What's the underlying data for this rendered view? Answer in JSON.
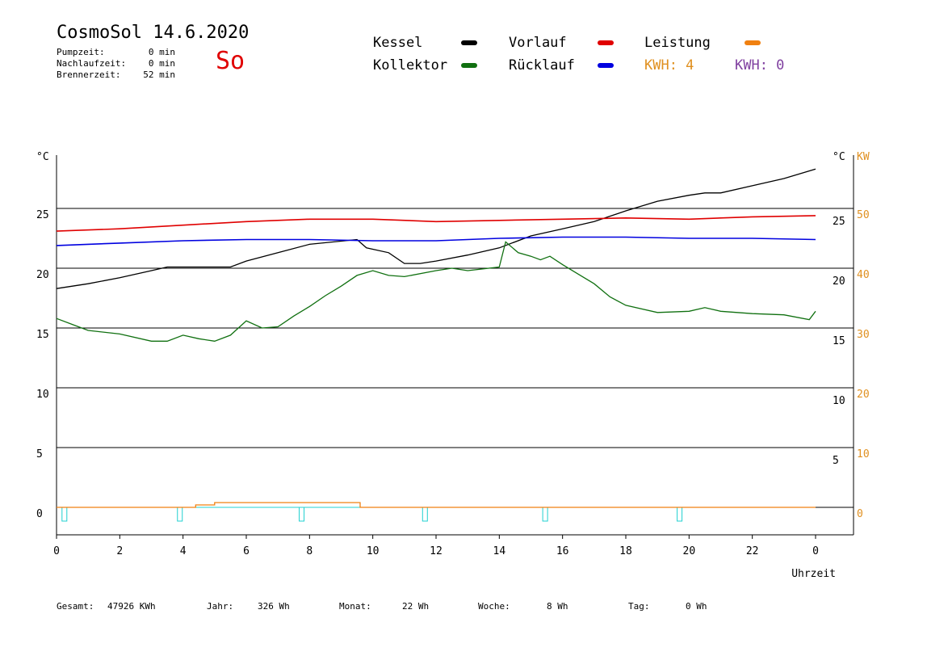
{
  "header": {
    "title": "CosmoSol 14.6.2020",
    "day": "So",
    "stats": [
      {
        "label": "Pumpzeit:",
        "value": "0 min"
      },
      {
        "label": "Nachlaufzeit:",
        "value": "0 min"
      },
      {
        "label": "Brennerzeit:",
        "value": "52 min"
      }
    ]
  },
  "legend": {
    "items": [
      {
        "label": "Kessel",
        "color": "#000000"
      },
      {
        "label": "Vorlauf",
        "color": "#e00000"
      },
      {
        "label": "Leistung",
        "color": "#f08010"
      },
      {
        "label": "Kollektor",
        "color": "#107010"
      },
      {
        "label": "Rücklauf",
        "color": "#0000e0"
      }
    ],
    "kwh_orange": "KWH: 4",
    "kwh_purple": "KWH: 0",
    "kwh_orange_color": "#e09020",
    "kwh_purple_color": "#8040a0"
  },
  "totals": [
    {
      "label": "Gesamt:",
      "value": "47926 KWh"
    },
    {
      "label": "Jahr:",
      "value": "326 Wh"
    },
    {
      "label": "Monat:",
      "value": "22 Wh"
    },
    {
      "label": "Woche:",
      "value": "8 Wh"
    },
    {
      "label": "Tag:",
      "value": "0 Wh"
    }
  ],
  "chart_data": {
    "type": "line",
    "xlabel": "Uhrzeit",
    "left_unit": "°C",
    "right_unit_temp": "°C",
    "right_unit_power": "KW",
    "x_ticks": [
      "0",
      "2",
      "4",
      "6",
      "8",
      "10",
      "12",
      "14",
      "16",
      "18",
      "20",
      "22",
      "0"
    ],
    "y_ticks_left": [
      "0",
      "5",
      "10",
      "15",
      "20",
      "25"
    ],
    "y_ticks_right_temp": [
      "5",
      "10",
      "15",
      "20",
      "25"
    ],
    "y_ticks_right_power": [
      "0",
      "10",
      "20",
      "30",
      "40",
      "50"
    ],
    "xlim": [
      0,
      24
    ],
    "ylim": [
      -2.5,
      30
    ],
    "series": [
      {
        "name": "Kessel",
        "color": "#000000",
        "x": [
          0,
          1,
          2,
          3,
          3.5,
          5.5,
          6,
          7,
          8,
          9.5,
          9.8,
          10.5,
          11,
          11.5,
          12,
          13,
          14,
          15,
          16,
          17,
          18,
          19,
          20,
          20.5,
          21,
          22,
          23,
          24
        ],
        "y": [
          18.3,
          18.7,
          19.2,
          19.8,
          20.1,
          20.1,
          20.6,
          21.3,
          22,
          22.4,
          21.7,
          21.3,
          20.4,
          20.4,
          20.6,
          21.1,
          21.7,
          22.7,
          23.3,
          23.9,
          24.8,
          25.6,
          26.1,
          26.3,
          26.3,
          26.9,
          27.5,
          28.3
        ]
      },
      {
        "name": "Vorlauf",
        "color": "#e00000",
        "x": [
          0,
          2,
          4,
          6,
          8,
          10,
          12,
          14,
          16,
          18,
          20,
          22,
          24
        ],
        "y": [
          23.1,
          23.3,
          23.6,
          23.9,
          24.1,
          24.1,
          23.9,
          24.0,
          24.1,
          24.2,
          24.1,
          24.3,
          24.4
        ]
      },
      {
        "name": "Rücklauf",
        "color": "#0000e0",
        "x": [
          0,
          2,
          4,
          6,
          8,
          10,
          12,
          14,
          16,
          18,
          20,
          22,
          24
        ],
        "y": [
          21.9,
          22.1,
          22.3,
          22.4,
          22.4,
          22.3,
          22.3,
          22.5,
          22.6,
          22.6,
          22.5,
          22.5,
          22.4
        ]
      },
      {
        "name": "Kollektor",
        "color": "#107010",
        "x": [
          0,
          0.5,
          1,
          2,
          3,
          3.5,
          4,
          4.5,
          5,
          5.5,
          6,
          6.5,
          7,
          7.5,
          8,
          8.5,
          9,
          9.5,
          10,
          10.5,
          11,
          12,
          12.5,
          13,
          14,
          14.2,
          14.6,
          15,
          15.3,
          15.6,
          16,
          16.5,
          17,
          17.5,
          18,
          19,
          20,
          20.5,
          21,
          22,
          23,
          23.8,
          24
        ],
        "y": [
          15.8,
          15.3,
          14.8,
          14.5,
          13.9,
          13.9,
          14.4,
          14.1,
          13.9,
          14.4,
          15.6,
          15.0,
          15.1,
          16.0,
          16.8,
          17.7,
          18.5,
          19.4,
          19.8,
          19.4,
          19.3,
          19.8,
          20.0,
          19.8,
          20.1,
          22.2,
          21.3,
          21.0,
          20.7,
          21.0,
          20.3,
          19.5,
          18.7,
          17.6,
          16.9,
          16.3,
          16.4,
          16.7,
          16.4,
          16.2,
          16.1,
          15.7,
          16.4
        ]
      },
      {
        "name": "Leistung",
        "color": "#f08010",
        "x": [
          0,
          4.4,
          4.4,
          5.0,
          5.0,
          9.6,
          9.6,
          24
        ],
        "y": [
          0,
          0,
          0.2,
          0.2,
          0.4,
          0.4,
          0,
          0
        ]
      }
    ],
    "pump_markers": {
      "color": "#20d0d0",
      "x": [
        0.25,
        3.9,
        7.75,
        11.65,
        15.45,
        19.7
      ]
    }
  }
}
